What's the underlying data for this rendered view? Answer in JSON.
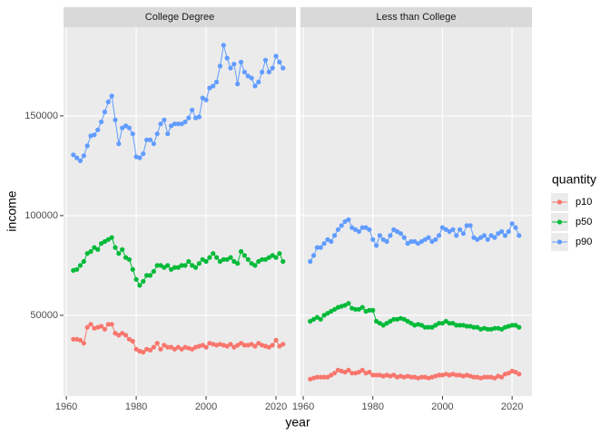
{
  "chart_data": {
    "type": "line",
    "x_label": "year",
    "y_label": "income",
    "legend_title": "quantity",
    "x": [
      1962,
      1963,
      1964,
      1965,
      1966,
      1967,
      1968,
      1969,
      1970,
      1971,
      1972,
      1973,
      1974,
      1975,
      1976,
      1977,
      1978,
      1979,
      1980,
      1981,
      1982,
      1983,
      1984,
      1985,
      1986,
      1987,
      1988,
      1989,
      1990,
      1991,
      1992,
      1993,
      1994,
      1995,
      1996,
      1997,
      1998,
      1999,
      2000,
      2001,
      2002,
      2003,
      2004,
      2005,
      2006,
      2007,
      2008,
      2009,
      2010,
      2011,
      2012,
      2013,
      2014,
      2015,
      2016,
      2017,
      2018,
      2019,
      2020,
      2021,
      2022
    ],
    "xlim": [
      1959.2,
      2025.7
    ],
    "xticks": [
      1960,
      1980,
      2000,
      2020
    ],
    "ylim": [
      9500,
      194500
    ],
    "yticks": [
      50000,
      100000,
      150000
    ],
    "grid": true,
    "facets": [
      {
        "title": "College Degree",
        "series": [
          {
            "name": "p10",
            "color": "#F8766D",
            "values": [
              38000,
              38000,
              37500,
              36000,
              44000,
              45500,
              43500,
              44000,
              44500,
              43000,
              45500,
              45500,
              41000,
              40000,
              41000,
              40000,
              38000,
              37000,
              33000,
              32000,
              31500,
              33000,
              32500,
              34000,
              36000,
              33000,
              35000,
              34000,
              34000,
              33000,
              34000,
              33000,
              34000,
              33500,
              33000,
              34000,
              34500,
              35000,
              34000,
              36000,
              35500,
              35000,
              35500,
              35000,
              34500,
              35500,
              34000,
              35000,
              36000,
              35000,
              35000,
              35500,
              34500,
              36000,
              35000,
              34500,
              34000,
              35000,
              37500,
              34500,
              35500
            ]
          },
          {
            "name": "p50",
            "color": "#00BA38",
            "values": [
              72500,
              73000,
              75000,
              77000,
              81000,
              82000,
              84000,
              83000,
              86000,
              87000,
              88000,
              89000,
              84000,
              81000,
              83000,
              79000,
              78000,
              73000,
              68000,
              65000,
              67000,
              70000,
              70000,
              72000,
              75000,
              75000,
              74000,
              75000,
              73000,
              74000,
              74000,
              75000,
              75000,
              77000,
              75000,
              74000,
              76000,
              78000,
              77000,
              79000,
              81000,
              79000,
              77000,
              78000,
              78000,
              79000,
              77000,
              76000,
              82000,
              80000,
              78000,
              76000,
              75000,
              77000,
              78000,
              78000,
              79000,
              80000,
              79000,
              81000,
              77000
            ]
          },
          {
            "name": "p90",
            "color": "#619CFF",
            "values": [
              130500,
              129000,
              127500,
              130000,
              135000,
              140000,
              140500,
              143000,
              147000,
              152000,
              157000,
              160000,
              148000,
              136000,
              144000,
              145000,
              144000,
              141000,
              129500,
              129000,
              131000,
              138000,
              138000,
              136000,
              141000,
              146000,
              148000,
              141000,
              145000,
              146000,
              146000,
              146000,
              147000,
              149000,
              153000,
              149000,
              149500,
              159000,
              158000,
              164000,
              165000,
              167000,
              175000,
              185500,
              179000,
              174000,
              176000,
              166000,
              177000,
              172000,
              170000,
              169000,
              165000,
              167000,
              172000,
              178000,
              172000,
              174000,
              180000,
              177000,
              174000
            ]
          }
        ]
      },
      {
        "title": "Less than College",
        "series": [
          {
            "name": "p10",
            "color": "#F8766D",
            "values": [
              18000,
              18500,
              19000,
              19000,
              19000,
              19000,
              20000,
              21000,
              22500,
              22000,
              21500,
              22500,
              21000,
              21000,
              21500,
              22500,
              21000,
              21500,
              20000,
              20000,
              20000,
              19500,
              20000,
              19500,
              20000,
              19000,
              19500,
              19000,
              19500,
              19000,
              19000,
              18500,
              19000,
              19000,
              18500,
              19000,
              19500,
              20000,
              20000,
              20500,
              20000,
              20500,
              20000,
              20000,
              19500,
              20000,
              19500,
              19000,
              19000,
              18500,
              19000,
              19000,
              19000,
              18500,
              19500,
              19000,
              20500,
              21000,
              22000,
              21500,
              20500
            ]
          },
          {
            "name": "p50",
            "color": "#00BA38",
            "values": [
              47000,
              48000,
              49000,
              48000,
              50000,
              51000,
              52000,
              53000,
              54000,
              54500,
              55000,
              56000,
              53500,
              53000,
              53000,
              54000,
              52000,
              52500,
              52500,
              47000,
              46000,
              45000,
              46000,
              47000,
              48000,
              48000,
              48500,
              48000,
              47000,
              46000,
              45000,
              45500,
              45000,
              44000,
              44000,
              44000,
              45000,
              46000,
              46000,
              47000,
              46000,
              46000,
              45000,
              45000,
              45000,
              44500,
              44500,
              44000,
              44000,
              43000,
              43500,
              43000,
              43000,
              43500,
              43500,
              43000,
              44000,
              44500,
              45000,
              45000,
              44000
            ]
          },
          {
            "name": "p90",
            "color": "#619CFF",
            "values": [
              77000,
              80000,
              84000,
              84000,
              86000,
              88000,
              87000,
              90000,
              93000,
              95000,
              97000,
              98000,
              94000,
              93000,
              92000,
              94000,
              94000,
              93000,
              88000,
              85000,
              90000,
              88000,
              87000,
              90000,
              93000,
              92000,
              91000,
              89000,
              86000,
              87000,
              87000,
              86000,
              87000,
              88000,
              89000,
              87000,
              88000,
              90000,
              94000,
              93000,
              92000,
              93000,
              90000,
              93000,
              91000,
              95000,
              95000,
              89000,
              88000,
              89000,
              90000,
              88000,
              90000,
              89000,
              91000,
              92000,
              90000,
              92000,
              96000,
              94000,
              90000
            ]
          }
        ]
      }
    ]
  }
}
